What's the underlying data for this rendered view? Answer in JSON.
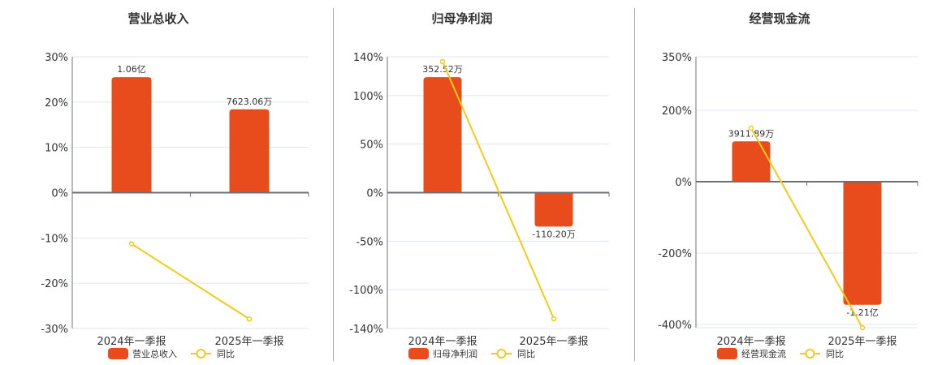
{
  "colors": {
    "bar": "#e84c1c",
    "line": "#f2cb16",
    "grid": "#dfe6f0",
    "axis": "#6e7079"
  },
  "legend_yoy": "同比",
  "chart_data": [
    {
      "type": "bar+line",
      "title": "营业总收入",
      "categories": [
        "2024年一季报",
        "2025年一季报"
      ],
      "series": [
        {
          "name": "营业总收入",
          "type": "bar",
          "labels": [
            "1.06亿",
            "7623.06万"
          ],
          "values_yuan": [
            106000000,
            76230600
          ]
        },
        {
          "name": "同比",
          "type": "line",
          "values": [
            -11.3,
            -27.9
          ]
        }
      ],
      "ylim": [
        -30,
        30
      ],
      "yticks": [
        "30%",
        "20%",
        "10%",
        "0%",
        "-10%",
        "-20%",
        "-30%"
      ],
      "ytick_values": [
        30,
        20,
        10,
        0,
        -10,
        -20,
        -30
      ],
      "bar_axis_pct": [
        25.5,
        18.4
      ]
    },
    {
      "type": "bar+line",
      "title": "归母净利润",
      "categories": [
        "2024年一季报",
        "2025年一季报"
      ],
      "series": [
        {
          "name": "归母净利润",
          "type": "bar",
          "labels": [
            "352.52万",
            "-110.20万"
          ],
          "values_yuan": [
            3525200,
            -1102000
          ]
        },
        {
          "name": "同比",
          "type": "line",
          "values": [
            135,
            -130
          ]
        }
      ],
      "ylim": [
        -140,
        140
      ],
      "yticks": [
        "140%",
        "100%",
        "50%",
        "0%",
        "-50%",
        "-100%",
        "-140%"
      ],
      "ytick_values": [
        140,
        100,
        50,
        0,
        -50,
        -100,
        -140
      ],
      "bar_axis_pct": [
        119,
        -35
      ]
    },
    {
      "type": "bar+line",
      "title": "经营现金流",
      "categories": [
        "2024年一季报",
        "2025年一季报"
      ],
      "series": [
        {
          "name": "经营现金流",
          "type": "bar",
          "labels": [
            "3911.89万",
            "-1.21亿"
          ],
          "values_yuan": [
            39118900,
            -121000000
          ]
        },
        {
          "name": "同比",
          "type": "line",
          "values": [
            150,
            -409
          ]
        }
      ],
      "ylim": [
        -410,
        350
      ],
      "yticks": [
        "350%",
        "200%",
        "0%",
        "-200%",
        "-400%"
      ],
      "ytick_values": [
        350,
        200,
        0,
        -200,
        -400
      ],
      "bar_axis_pct": [
        113,
        -345
      ]
    }
  ]
}
